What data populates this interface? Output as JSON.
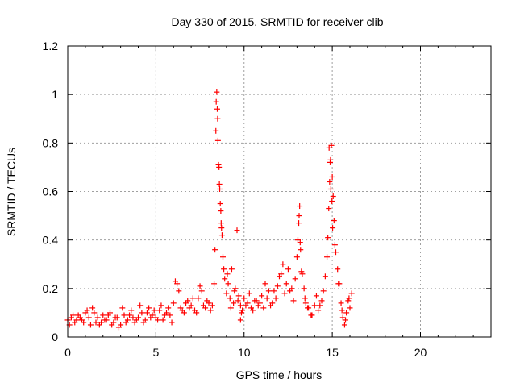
{
  "chart_data": {
    "type": "scatter",
    "title": "Day 330 of 2015, SRMTID for receiver clib",
    "xlabel": "GPS time / hours",
    "ylabel": "SRMTID / TECUs",
    "xlim": [
      0,
      24
    ],
    "ylim": [
      0,
      1.2
    ],
    "xticks": [
      0,
      5,
      10,
      15,
      20
    ],
    "xtick_labels": [
      "0",
      "5",
      "10",
      "15",
      "20"
    ],
    "yticks": [
      0,
      0.2,
      0.4,
      0.6,
      0.8,
      1,
      1.2
    ],
    "ytick_labels": [
      "0",
      "0.2",
      "0.4",
      "0.6",
      "0.8",
      "1",
      "1.2"
    ],
    "grid": true,
    "marker": "+",
    "color": "#ff0000",
    "series": [
      {
        "name": "SRMTID",
        "x": [
          0.0,
          0.2,
          0.4,
          0.6,
          0.8,
          1.0,
          1.2,
          1.4,
          1.6,
          1.8,
          2.0,
          2.2,
          2.4,
          2.6,
          2.8,
          3.0,
          3.2,
          3.4,
          3.6,
          3.8,
          4.0,
          4.2,
          4.4,
          4.6,
          4.8,
          5.0,
          5.2,
          5.4,
          5.6,
          5.8,
          6.0,
          6.2,
          6.4,
          6.6,
          6.8,
          7.0,
          7.2,
          7.4,
          7.6,
          7.8,
          8.0,
          8.2,
          8.35,
          8.4,
          8.45,
          8.5,
          8.55,
          8.6,
          8.65,
          8.7,
          8.75,
          8.8,
          8.85,
          8.9,
          9.0,
          9.1,
          9.2,
          9.3,
          9.4,
          9.5,
          9.6,
          9.7,
          9.8,
          9.9,
          10.0,
          10.2,
          10.4,
          10.6,
          10.8,
          11.0,
          11.2,
          11.4,
          11.6,
          11.8,
          12.0,
          12.2,
          12.4,
          12.6,
          12.8,
          12.9,
          13.0,
          13.05,
          13.1,
          13.15,
          13.2,
          13.3,
          13.4,
          13.5,
          13.6,
          13.8,
          14.0,
          14.2,
          14.4,
          14.5,
          14.6,
          14.7,
          14.75,
          14.8,
          14.85,
          14.9,
          14.95,
          15.0,
          15.05,
          15.1,
          15.2,
          15.3,
          15.4,
          15.5,
          15.6,
          15.7,
          15.8,
          15.9,
          16.0,
          16.1,
          0.1,
          0.3,
          0.5,
          0.7,
          0.9,
          1.1,
          1.3,
          1.5,
          1.7,
          1.9,
          2.1,
          2.3,
          2.5,
          2.7,
          2.9,
          3.1,
          3.3,
          3.5,
          3.7,
          3.9,
          4.1,
          4.3,
          4.5,
          4.7,
          4.9,
          5.1,
          5.3,
          5.5,
          5.7,
          5.9,
          6.1,
          6.3,
          6.5,
          6.7,
          6.9,
          7.1,
          7.3,
          7.5,
          7.7,
          7.9,
          8.1,
          8.3,
          9.05,
          9.25,
          9.45,
          9.65,
          9.85,
          10.1,
          10.3,
          10.5,
          10.7,
          10.9,
          11.1,
          11.3,
          11.5,
          11.7,
          11.9,
          12.1,
          12.3,
          12.5,
          12.7,
          13.25,
          13.45,
          13.65,
          13.85,
          14.1,
          14.3,
          15.15,
          15.35,
          15.55,
          15.75,
          15.95,
          8.42,
          8.48,
          8.52,
          8.58,
          8.62,
          8.68,
          8.72,
          9.8,
          13.12,
          13.18,
          14.82,
          14.88,
          14.92,
          14.98,
          15.02
        ],
        "y": [
          0.07,
          0.08,
          0.06,
          0.09,
          0.07,
          0.1,
          0.08,
          0.12,
          0.06,
          0.05,
          0.09,
          0.07,
          0.1,
          0.06,
          0.08,
          0.05,
          0.09,
          0.07,
          0.11,
          0.06,
          0.08,
          0.1,
          0.07,
          0.12,
          0.09,
          0.08,
          0.11,
          0.07,
          0.1,
          0.09,
          0.14,
          0.22,
          0.12,
          0.1,
          0.15,
          0.13,
          0.11,
          0.16,
          0.19,
          0.12,
          0.14,
          0.13,
          0.36,
          0.85,
          1.01,
          0.9,
          0.71,
          0.63,
          0.55,
          0.47,
          0.42,
          0.33,
          0.28,
          0.24,
          0.18,
          0.22,
          0.16,
          0.28,
          0.14,
          0.2,
          0.44,
          0.17,
          0.13,
          0.11,
          0.16,
          0.14,
          0.12,
          0.15,
          0.13,
          0.17,
          0.22,
          0.19,
          0.14,
          0.16,
          0.25,
          0.3,
          0.22,
          0.19,
          0.15,
          0.24,
          0.33,
          0.4,
          0.47,
          0.54,
          0.36,
          0.26,
          0.2,
          0.14,
          0.12,
          0.09,
          0.13,
          0.11,
          0.15,
          0.19,
          0.25,
          0.33,
          0.41,
          0.53,
          0.64,
          0.73,
          0.79,
          0.66,
          0.58,
          0.48,
          0.35,
          0.28,
          0.22,
          0.14,
          0.08,
          0.05,
          0.1,
          0.15,
          0.12,
          0.18,
          0.05,
          0.09,
          0.07,
          0.08,
          0.06,
          0.11,
          0.05,
          0.1,
          0.08,
          0.06,
          0.07,
          0.09,
          0.05,
          0.08,
          0.04,
          0.12,
          0.06,
          0.09,
          0.08,
          0.07,
          0.13,
          0.06,
          0.1,
          0.08,
          0.11,
          0.07,
          0.13,
          0.09,
          0.12,
          0.06,
          0.23,
          0.19,
          0.11,
          0.14,
          0.12,
          0.16,
          0.1,
          0.21,
          0.13,
          0.15,
          0.11,
          0.22,
          0.26,
          0.12,
          0.19,
          0.15,
          0.1,
          0.13,
          0.18,
          0.11,
          0.15,
          0.14,
          0.12,
          0.16,
          0.13,
          0.19,
          0.21,
          0.26,
          0.18,
          0.28,
          0.2,
          0.27,
          0.16,
          0.12,
          0.09,
          0.17,
          0.13,
          0.38,
          0.22,
          0.11,
          0.07,
          0.16,
          0.97,
          0.94,
          0.81,
          0.7,
          0.61,
          0.52,
          0.45,
          0.07,
          0.5,
          0.39,
          0.78,
          0.72,
          0.61,
          0.56,
          0.45
        ]
      }
    ]
  }
}
